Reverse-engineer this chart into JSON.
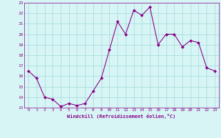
{
  "x": [
    0,
    1,
    2,
    3,
    4,
    5,
    6,
    7,
    8,
    9,
    10,
    11,
    12,
    13,
    14,
    15,
    16,
    17,
    18,
    19,
    20,
    21,
    22,
    23
  ],
  "y": [
    16.5,
    15.8,
    14.0,
    13.8,
    13.1,
    13.4,
    13.2,
    13.4,
    14.6,
    15.8,
    18.5,
    21.2,
    20.0,
    22.3,
    21.8,
    22.6,
    19.0,
    20.0,
    20.0,
    18.8,
    19.4,
    19.2,
    16.8,
    16.5
  ],
  "line_color": "#880088",
  "marker": "D",
  "marker_size": 2,
  "bg_color": "#d7f5f5",
  "grid_color": "#aadddd",
  "xlabel": "Windchill (Refroidissement éolien,°C)",
  "xlim": [
    -0.5,
    23.5
  ],
  "ylim": [
    13,
    23
  ],
  "yticks": [
    13,
    14,
    15,
    16,
    17,
    18,
    19,
    20,
    21,
    22,
    23
  ],
  "xticks": [
    0,
    1,
    2,
    3,
    4,
    5,
    6,
    7,
    8,
    9,
    10,
    11,
    12,
    13,
    14,
    15,
    16,
    17,
    18,
    19,
    20,
    21,
    22,
    23
  ],
  "tick_color": "#880088",
  "label_color": "#880088",
  "axis_color": "#880088",
  "line_width": 0.8
}
